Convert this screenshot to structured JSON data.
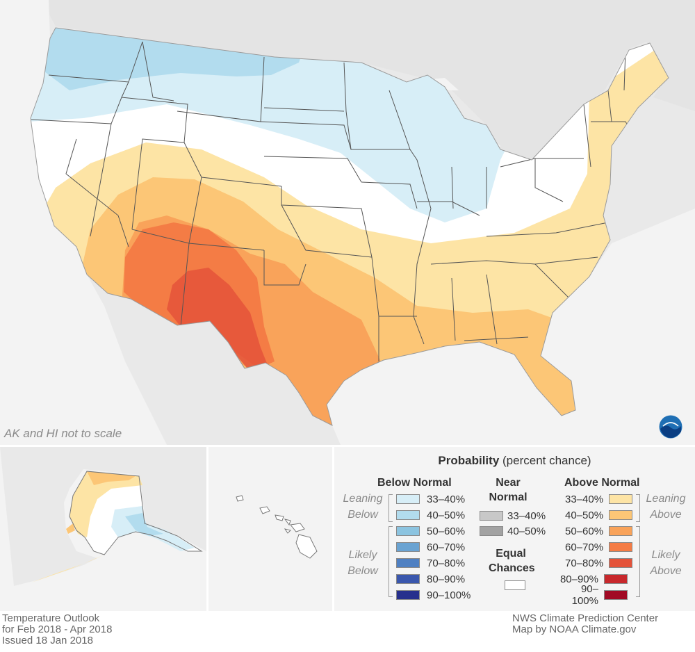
{
  "map": {
    "note": "AK and HI not to scale",
    "logo_text": "NOAA",
    "colors": {
      "land": "#ffffff",
      "background_land": "#e9e9e9",
      "water": "#f2f2f2",
      "state_lines": "#555555"
    }
  },
  "legend": {
    "title_bold": "Probability",
    "title_rest": " (percent chance)",
    "below": {
      "header": "Below Normal",
      "items": [
        {
          "label": "33–40%",
          "color": "#d7eef7"
        },
        {
          "label": "40–50%",
          "color": "#b2dcee"
        },
        {
          "label": "50–60%",
          "color": "#8cc4e0"
        },
        {
          "label": "60–70%",
          "color": "#6aa3d2"
        },
        {
          "label": "70–80%",
          "color": "#4f80c2"
        },
        {
          "label": "80–90%",
          "color": "#3a57ad"
        },
        {
          "label": "90–100%",
          "color": "#27308d"
        }
      ],
      "leaning_label": [
        "Leaning",
        "Below"
      ],
      "likely_label": [
        "Likely",
        "Below"
      ]
    },
    "near": {
      "header": [
        "Near",
        "Normal"
      ],
      "items": [
        {
          "label": "33–40%",
          "color": "#c8c8c8"
        },
        {
          "label": "40–50%",
          "color": "#a2a2a2"
        }
      ]
    },
    "equal": {
      "header": [
        "Equal",
        "Chances"
      ],
      "color": "#ffffff"
    },
    "above": {
      "header": "Above Normal",
      "items": [
        {
          "label": "33–40%",
          "color": "#fde4a5"
        },
        {
          "label": "40–50%",
          "color": "#fcc676"
        },
        {
          "label": "50–60%",
          "color": "#f9a35a"
        },
        {
          "label": "60–70%",
          "color": "#f47c45"
        },
        {
          "label": "70–80%",
          "color": "#e4533a"
        },
        {
          "label": "80–90%",
          "color": "#c8282c"
        },
        {
          "label": "90–100%",
          "color": "#a10a24"
        }
      ],
      "leaning_label": [
        "Leaning",
        "Above"
      ],
      "likely_label": [
        "Likely",
        "Above"
      ]
    }
  },
  "footer": {
    "left": [
      "Temperature Outlook",
      "for Feb 2018 - Apr 2018",
      "Issued 18 Jan 2018"
    ],
    "right": [
      "NWS Climate Prediction Center",
      "Map by NOAA Climate.gov"
    ]
  }
}
